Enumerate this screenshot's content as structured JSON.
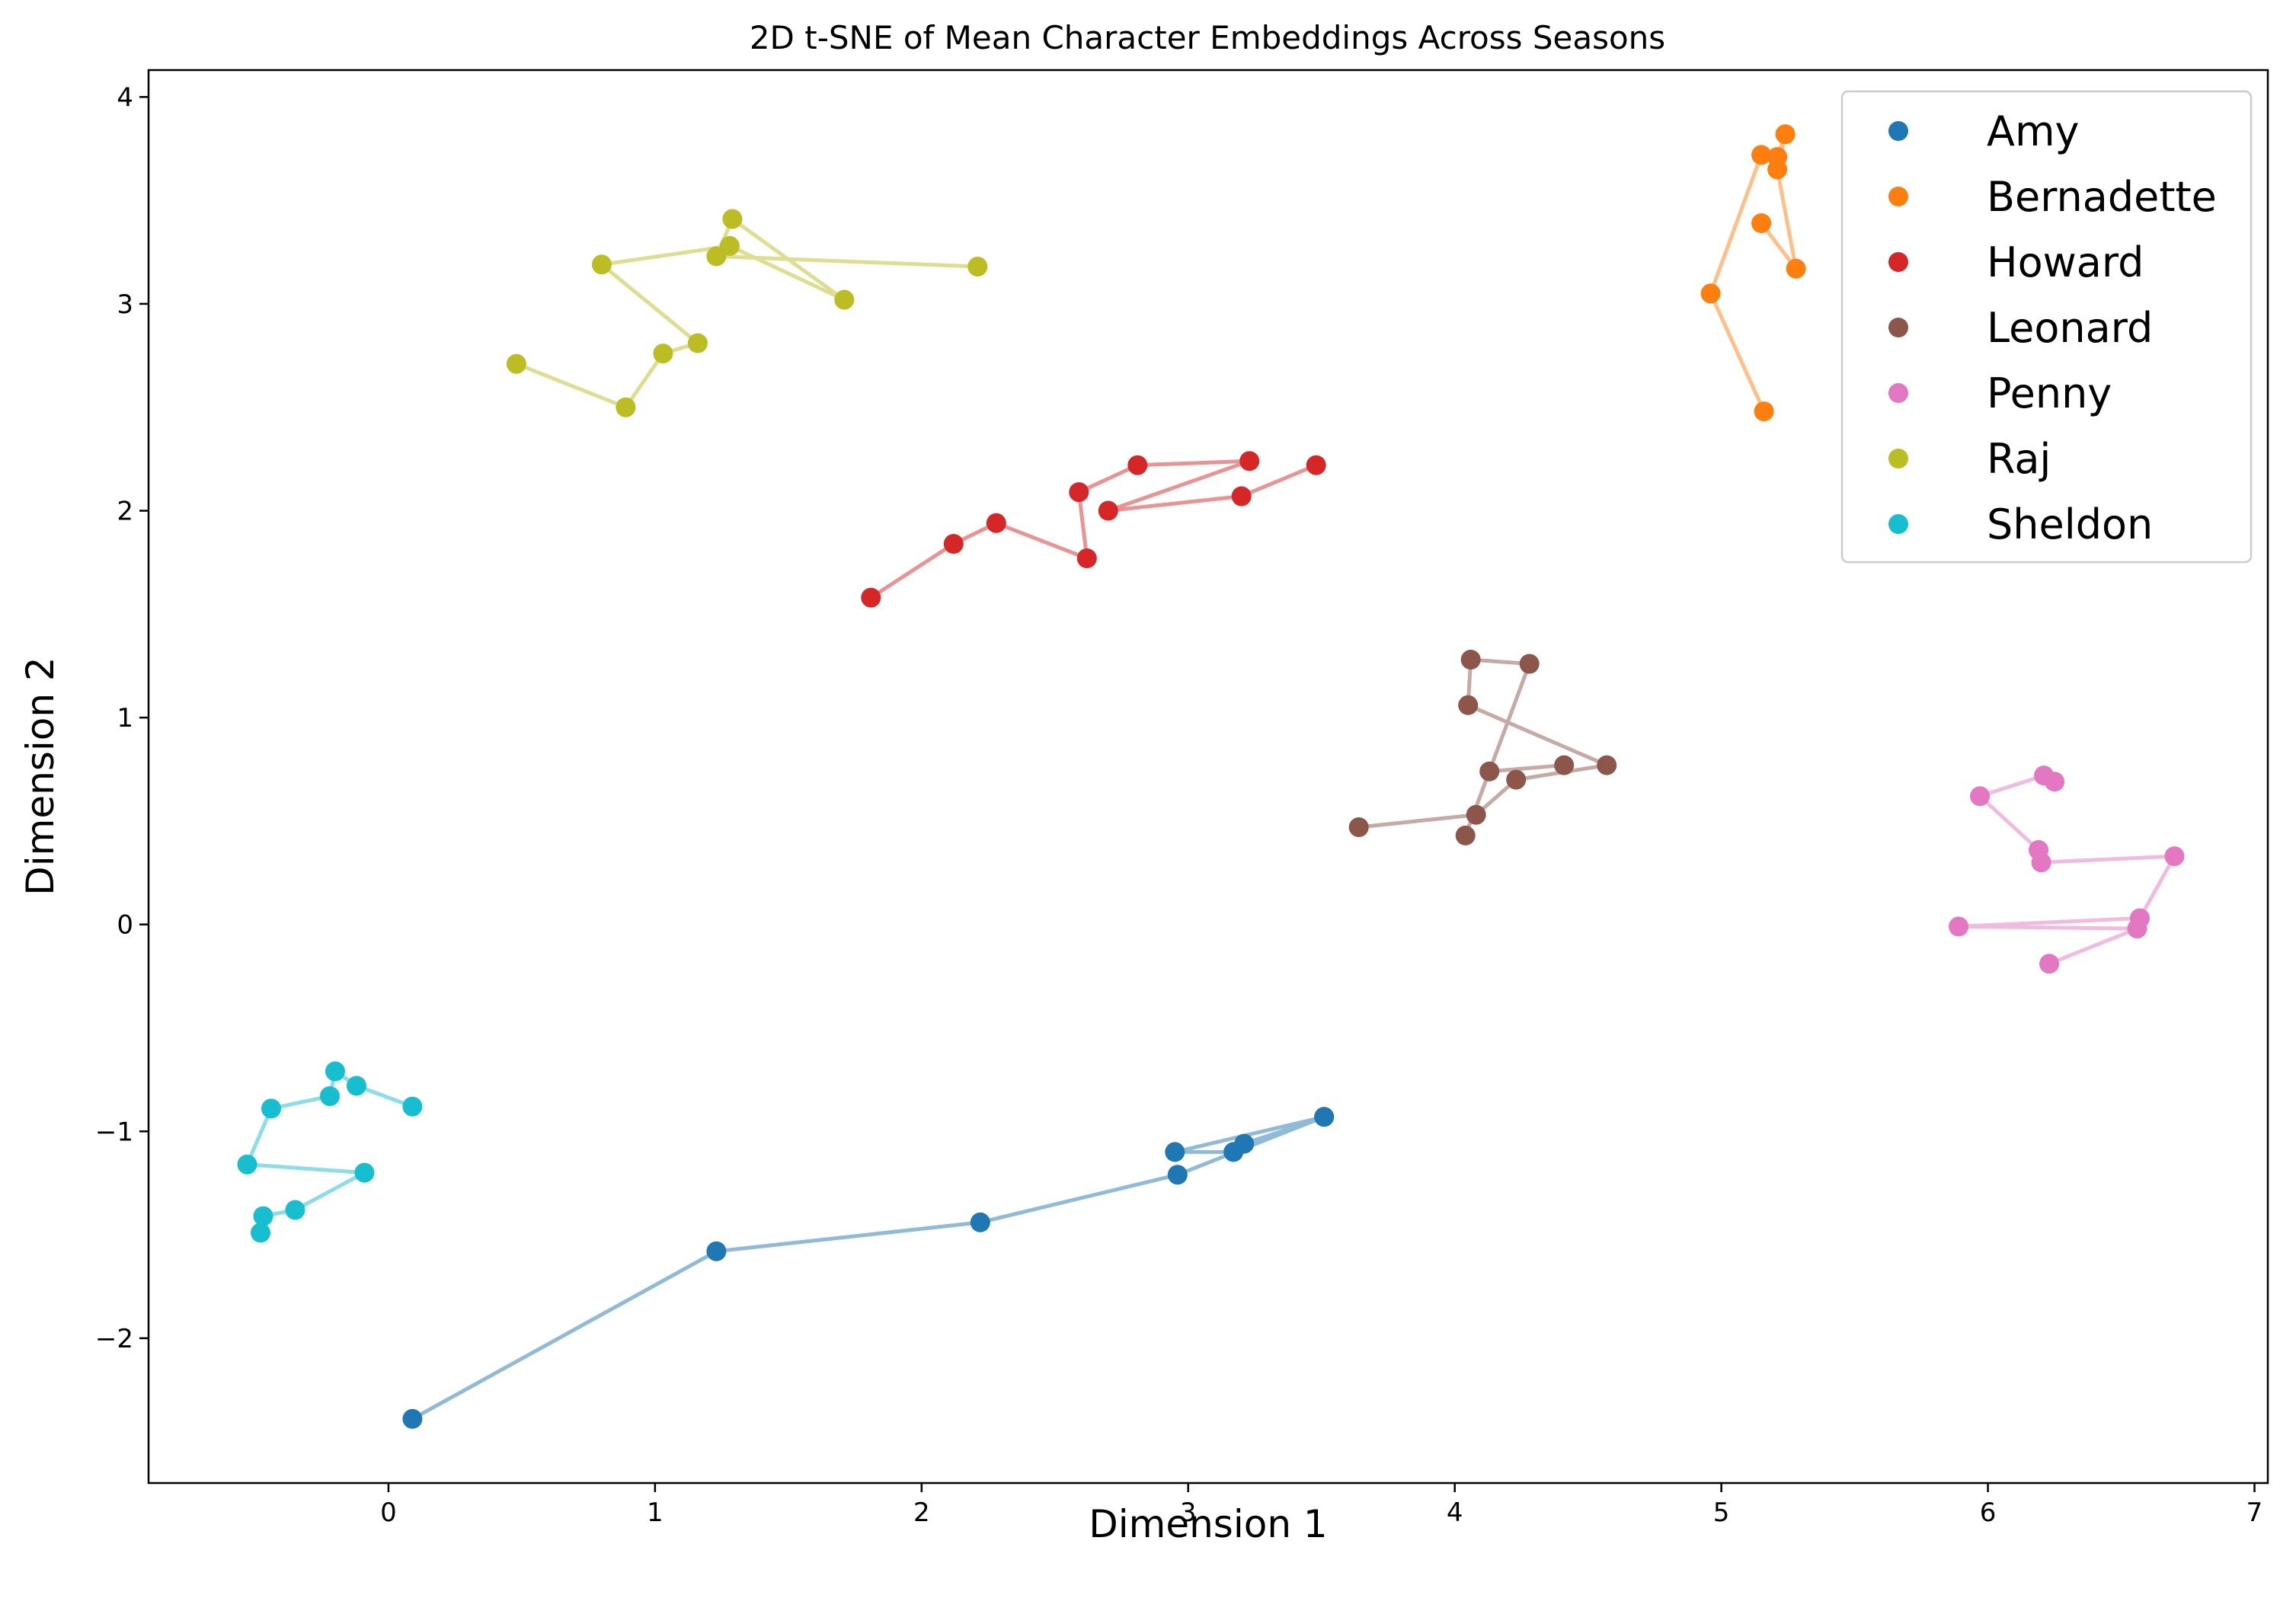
{
  "chart_data": {
    "type": "scatter",
    "title": "2D t-SNE of Mean Character Embeddings Across Seasons",
    "xlabel": "Dimension 1",
    "ylabel": "Dimension 2",
    "xlim": [
      -0.9,
      7.05
    ],
    "ylim": [
      -2.7,
      4.13
    ],
    "xticks": [
      0,
      1,
      2,
      3,
      4,
      5,
      6,
      7
    ],
    "yticks": [
      -2,
      -1,
      0,
      1,
      2,
      3,
      4
    ],
    "xtick_labels": [
      "0",
      "1",
      "2",
      "3",
      "4",
      "5",
      "6",
      "7"
    ],
    "ytick_labels": [
      "−2",
      "−1",
      "0",
      "1",
      "2",
      "3",
      "4"
    ],
    "grid": false,
    "legend_position": "top-right",
    "series": [
      {
        "name": "Amy",
        "color": "#1f77b4",
        "points": [
          [
            0.09,
            -2.39
          ],
          [
            1.23,
            -1.58
          ],
          [
            2.22,
            -1.44
          ],
          [
            2.96,
            -1.21
          ],
          [
            3.51,
            -0.93
          ],
          [
            2.95,
            -1.1
          ],
          [
            3.17,
            -1.1
          ],
          [
            3.21,
            -1.06
          ],
          [
            3.51,
            -0.93
          ]
        ]
      },
      {
        "name": "Bernadette",
        "color": "#ff7f0e",
        "points": [
          [
            5.16,
            2.48
          ],
          [
            4.96,
            3.05
          ],
          [
            5.15,
            3.72
          ],
          [
            5.21,
            3.71
          ],
          [
            5.24,
            3.82
          ],
          [
            5.21,
            3.65
          ],
          [
            5.28,
            3.17
          ],
          [
            5.15,
            3.39
          ]
        ]
      },
      {
        "name": "Howard",
        "color": "#d62728",
        "points": [
          [
            1.81,
            1.58
          ],
          [
            2.12,
            1.84
          ],
          [
            2.28,
            1.94
          ],
          [
            2.62,
            1.77
          ],
          [
            2.59,
            2.09
          ],
          [
            2.81,
            2.22
          ],
          [
            3.23,
            2.24
          ],
          [
            2.7,
            2.0
          ],
          [
            3.2,
            2.07
          ],
          [
            3.48,
            2.22
          ]
        ]
      },
      {
        "name": "Leonard",
        "color": "#8c564b",
        "points": [
          [
            3.64,
            0.47
          ],
          [
            4.08,
            0.53
          ],
          [
            4.23,
            0.7
          ],
          [
            4.57,
            0.77
          ],
          [
            4.05,
            1.06
          ],
          [
            4.06,
            1.28
          ],
          [
            4.28,
            1.26
          ],
          [
            4.04,
            0.43
          ],
          [
            4.13,
            0.74
          ],
          [
            4.41,
            0.77
          ]
        ]
      },
      {
        "name": "Penny",
        "color": "#e377c2",
        "points": [
          [
            6.25,
            0.69
          ],
          [
            6.21,
            0.72
          ],
          [
            5.97,
            0.62
          ],
          [
            6.19,
            0.36
          ],
          [
            6.2,
            0.3
          ],
          [
            6.7,
            0.33
          ],
          [
            6.57,
            0.03
          ],
          [
            5.89,
            -0.01
          ],
          [
            6.56,
            -0.02
          ],
          [
            6.23,
            -0.19
          ]
        ]
      },
      {
        "name": "Raj",
        "color": "#bcbd22",
        "points": [
          [
            0.48,
            2.71
          ],
          [
            0.89,
            2.5
          ],
          [
            1.03,
            2.76
          ],
          [
            1.16,
            2.81
          ],
          [
            0.8,
            3.19
          ],
          [
            1.28,
            3.28
          ],
          [
            1.71,
            3.02
          ],
          [
            1.29,
            3.41
          ],
          [
            1.23,
            3.23
          ],
          [
            2.21,
            3.18
          ]
        ]
      },
      {
        "name": "Sheldon",
        "color": "#17becf",
        "points": [
          [
            -0.48,
            -1.49
          ],
          [
            -0.47,
            -1.41
          ],
          [
            -0.35,
            -1.38
          ],
          [
            -0.09,
            -1.2
          ],
          [
            -0.53,
            -1.16
          ],
          [
            -0.44,
            -0.89
          ],
          [
            -0.22,
            -0.83
          ],
          [
            -0.2,
            -0.71
          ],
          [
            -0.12,
            -0.78
          ],
          [
            0.09,
            -0.88
          ]
        ]
      }
    ]
  }
}
